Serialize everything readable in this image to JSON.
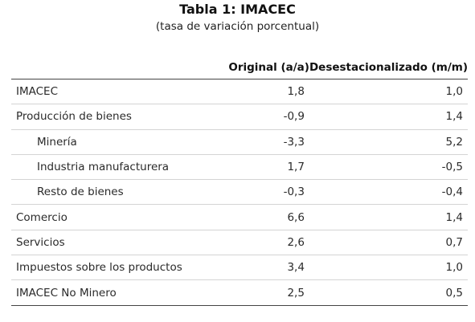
{
  "title": "Tabla 1:  IMACEC",
  "subtitle": "(tasa de variación porcentual)",
  "headers": [
    "",
    "Original (a/a)",
    "Desestacionalizado (m/m)"
  ],
  "rows": [
    {
      "label": "IMACEC",
      "original": "1,8",
      "desest": "1,0",
      "indent": false
    },
    {
      "label": "Producción de bienes",
      "original": "-0,9",
      "desest": "1,4",
      "indent": false
    },
    {
      "label": "Minería",
      "original": "-3,3",
      "desest": "5,2",
      "indent": true
    },
    {
      "label": "Industria manufacturera",
      "original": "1,7",
      "desest": "-0,5",
      "indent": true
    },
    {
      "label": "Resto de bienes",
      "original": "-0,3",
      "desest": "-0,4",
      "indent": true
    },
    {
      "label": "Comercio",
      "original": "6,6",
      "desest": "1,4",
      "indent": false
    },
    {
      "label": "Servicios",
      "original": "2,6",
      "desest": "0,7",
      "indent": false
    },
    {
      "label": "Impuestos sobre los productos",
      "original": "3,4",
      "desest": "1,0",
      "indent": false
    },
    {
      "label": "IMACEC No Minero",
      "original": "2,5",
      "desest": "0,5",
      "indent": false
    }
  ]
}
